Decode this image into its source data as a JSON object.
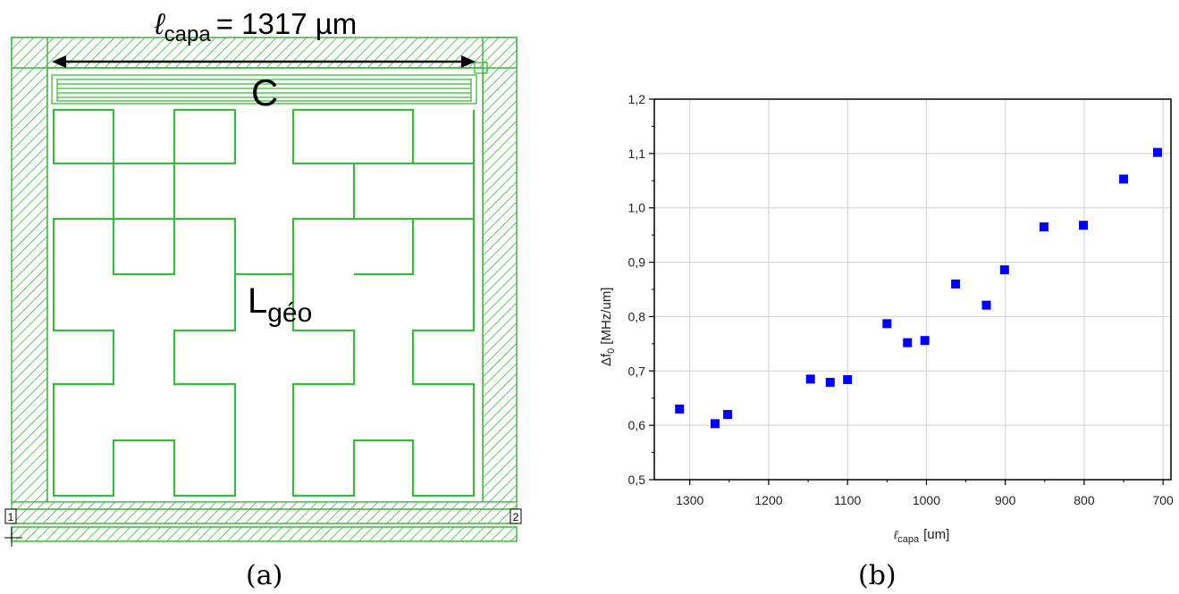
{
  "layout_figure": {
    "dimension_label_prefix": "ℓ",
    "dimension_label_sub": "capa",
    "dimension_label_value": "= 1317 µm",
    "capacitor_label": "C",
    "inductor_label_main": "L",
    "inductor_label_sub": "géo",
    "port_1": "1",
    "port_2": "2",
    "subfigure_label": "(a)",
    "line_color": "#3cb83c"
  },
  "plot_figure": {
    "subfigure_label": "(b)"
  },
  "chart_data": {
    "type": "scatter",
    "xlabel_prefix": "ℓ",
    "xlabel_sub": "capa",
    "xlabel_unit": "[um]",
    "ylabel_prefix": "Δf",
    "ylabel_sub": "0",
    "ylabel_unit": "[MHz/um]",
    "xlim": [
      1345,
      690
    ],
    "ylim": [
      0.5,
      1.2
    ],
    "x_reversed": true,
    "grid": true,
    "marker": "square",
    "marker_color": "#0000ff",
    "x_ticks": [
      "1300",
      "1200",
      "1100",
      "1000",
      "900",
      "800",
      "700"
    ],
    "y_ticks": [
      "0,5",
      "0,6",
      "0,7",
      "0,8",
      "0,9",
      "1,0",
      "1,1",
      "1,2"
    ],
    "series": [
      {
        "x": [
          1313,
          1268,
          1252,
          1147,
          1122,
          1100,
          1050,
          1024,
          1002,
          963,
          924,
          901,
          851,
          801,
          750,
          707
        ],
        "y": [
          0.63,
          0.603,
          0.62,
          0.685,
          0.679,
          0.684,
          0.787,
          0.752,
          0.756,
          0.86,
          0.821,
          0.886,
          0.965,
          0.968,
          1.053,
          1.102
        ]
      }
    ]
  }
}
